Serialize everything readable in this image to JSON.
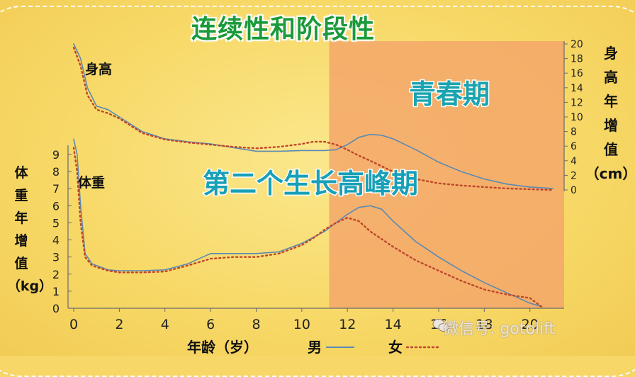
{
  "chart_data": {
    "type": "line",
    "title": "连续性和阶段性",
    "left_axis_label_chars": [
      "体",
      "重",
      "年",
      "增",
      "值",
      "（kg）"
    ],
    "right_axis_label_chars": [
      "身",
      "高",
      "年",
      "增",
      "值",
      "（cm）"
    ],
    "xlabel": "年龄（岁）",
    "xlim": [
      0,
      21.5
    ],
    "x_ticks": [
      0,
      2,
      4,
      6,
      8,
      10,
      12,
      14,
      16,
      18,
      20
    ],
    "x_tick_labels": [
      "0",
      "2",
      "4",
      "6",
      "8",
      "10",
      "12",
      "14",
      "16",
      "18",
      "20"
    ],
    "left_ylim": [
      0,
      9
    ],
    "left_ticks": [
      0,
      1,
      2,
      3,
      4,
      5,
      6,
      7,
      8,
      9
    ],
    "right_ylim": [
      0,
      20
    ],
    "right_ticks": [
      0,
      2,
      4,
      6,
      8,
      10,
      12,
      14,
      16,
      18,
      20
    ],
    "height_label": "身高",
    "weight_label": "体重",
    "puberty_label": "青春期",
    "second_peak_label": "第二个生长高峰期",
    "puberty_region": [
      11.2,
      21.5
    ],
    "legend": {
      "male": "男",
      "female": "女"
    },
    "colors": {
      "male": "#5b8ab3",
      "female": "#c0462a",
      "puberty_fill": "#f3a76a",
      "puberty_text": "#1aa4b0",
      "second_peak_text": "#17a0b8",
      "title_color": "#1a9a3a"
    },
    "series": [
      {
        "name": "男",
        "measure": "身高",
        "axis": "right",
        "x": [
          0,
          0.3,
          0.6,
          1,
          1.5,
          2,
          3,
          4,
          5,
          6,
          7,
          8,
          9,
          10,
          11,
          11.5,
          12,
          12.5,
          13,
          13.5,
          14,
          15,
          16,
          17,
          18,
          19,
          20,
          21
        ],
        "y": [
          20,
          18,
          14,
          11.5,
          11,
          10,
          8,
          7,
          6.6,
          6.3,
          5.8,
          5.3,
          5.3,
          5.4,
          5.4,
          5.5,
          6.2,
          7.2,
          7.6,
          7.5,
          7,
          5.5,
          3.8,
          2.5,
          1.5,
          0.8,
          0.4,
          0.2
        ]
      },
      {
        "name": "女",
        "measure": "身高",
        "axis": "right",
        "x": [
          0,
          0.3,
          0.6,
          1,
          1.5,
          2,
          3,
          4,
          5,
          6,
          7,
          8,
          9,
          10,
          10.5,
          11,
          11.5,
          12,
          12.5,
          13,
          14,
          15,
          16,
          17,
          18,
          19,
          20,
          21
        ],
        "y": [
          19.5,
          17,
          13,
          11,
          10.5,
          9.8,
          7.8,
          6.9,
          6.5,
          6.2,
          5.9,
          5.7,
          5.9,
          6.3,
          6.6,
          6.6,
          6.2,
          5.5,
          4.7,
          4,
          2.5,
          1.5,
          0.9,
          0.6,
          0.4,
          0.2,
          0.1,
          0
        ]
      },
      {
        "name": "男",
        "measure": "体重",
        "axis": "left",
        "x": [
          0,
          0.15,
          0.3,
          0.5,
          0.8,
          1.5,
          2,
          3,
          4,
          5,
          6,
          7,
          8,
          9,
          10,
          11,
          11.5,
          12,
          12.5,
          13,
          13.5,
          14,
          15,
          16,
          17,
          18,
          19,
          20,
          20.5
        ],
        "y": [
          9.9,
          9,
          6,
          3.2,
          2.6,
          2.25,
          2.2,
          2.2,
          2.25,
          2.6,
          3.2,
          3.2,
          3.2,
          3.3,
          3.8,
          4.5,
          5,
          5.5,
          5.9,
          6,
          5.8,
          5.1,
          3.9,
          3,
          2.2,
          1.5,
          0.9,
          0.3,
          0.1
        ]
      },
      {
        "name": "女",
        "measure": "体重",
        "axis": "left",
        "x": [
          0,
          0.15,
          0.3,
          0.5,
          0.8,
          1.5,
          2,
          3,
          4,
          5,
          6,
          7,
          8,
          9,
          10,
          10.5,
          11,
          11.5,
          12,
          12.5,
          13,
          14,
          15,
          16,
          17,
          18,
          19,
          20,
          20.5
        ],
        "y": [
          9.4,
          8,
          5,
          3,
          2.5,
          2.2,
          2.1,
          2.1,
          2.15,
          2.5,
          2.9,
          3,
          3,
          3.2,
          3.7,
          4.1,
          4.6,
          5,
          5.3,
          5.1,
          4.5,
          3.6,
          2.8,
          2.2,
          1.6,
          1.1,
          0.8,
          0.6,
          0.1
        ]
      }
    ],
    "watermark": "微信号: gotolift"
  }
}
